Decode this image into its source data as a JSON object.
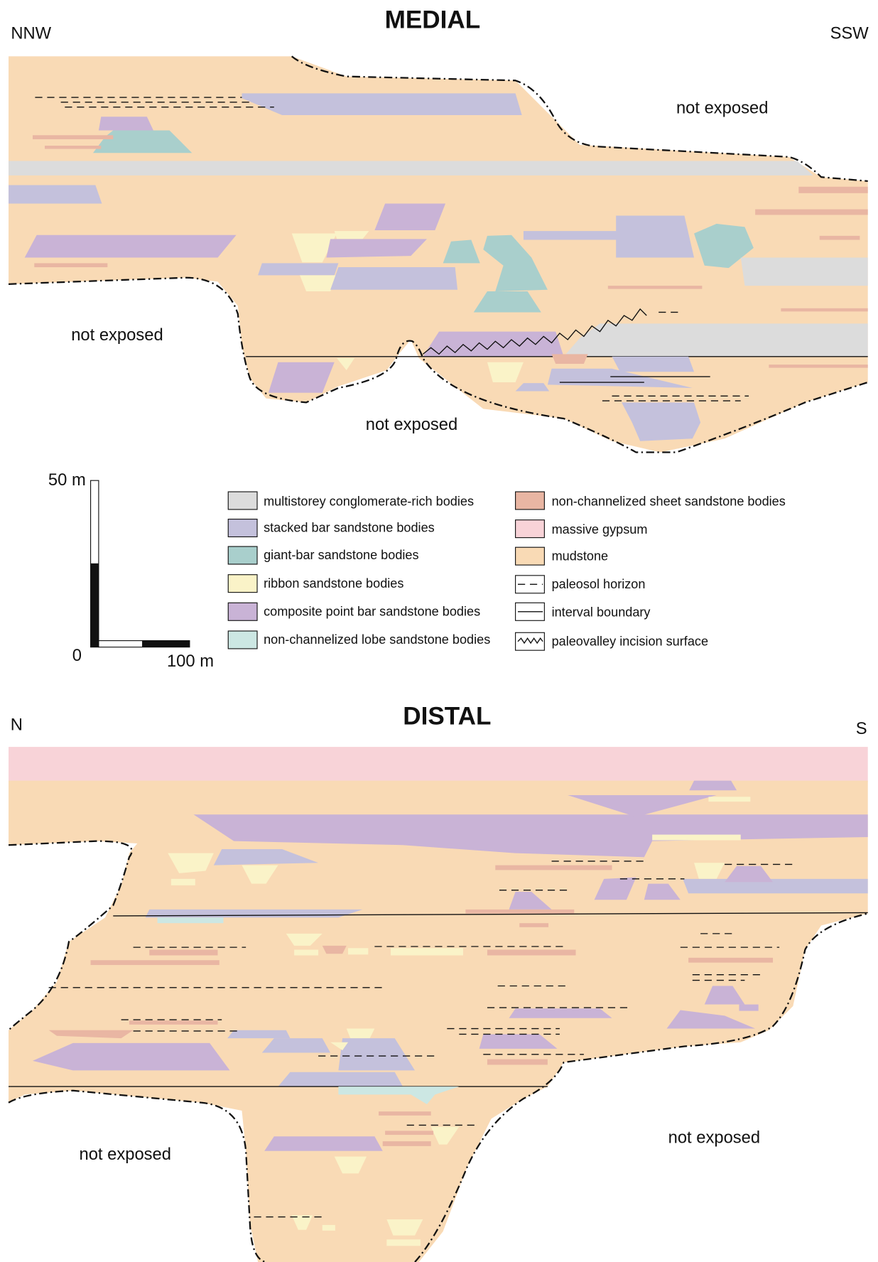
{
  "medial": {
    "title": "MEDIAL",
    "left_direction": "NNW",
    "right_direction": "SSW",
    "labels": [
      "not exposed",
      "not exposed",
      "not exposed"
    ]
  },
  "scale_bar": {
    "vertical_top": "50 m",
    "origin": "0",
    "horizontal_end": "100 m"
  },
  "legend": {
    "items": [
      "multistorey conglomerate-rich bodies",
      "stacked bar sandstone bodies",
      "giant-bar sandstone bodies",
      "ribbon sandstone bodies",
      "composite point bar sandstone bodies",
      "non-channelized lobe sandstone bodies",
      "non-channelized sheet sandstone bodies",
      "massive gypsum",
      "mudstone",
      "paleosol horizon",
      "interval boundary",
      "paleovalley incision surface"
    ]
  },
  "distal": {
    "title": "DISTAL",
    "left_direction": "N",
    "right_direction": "S",
    "labels": [
      "not exposed",
      "not exposed"
    ]
  }
}
